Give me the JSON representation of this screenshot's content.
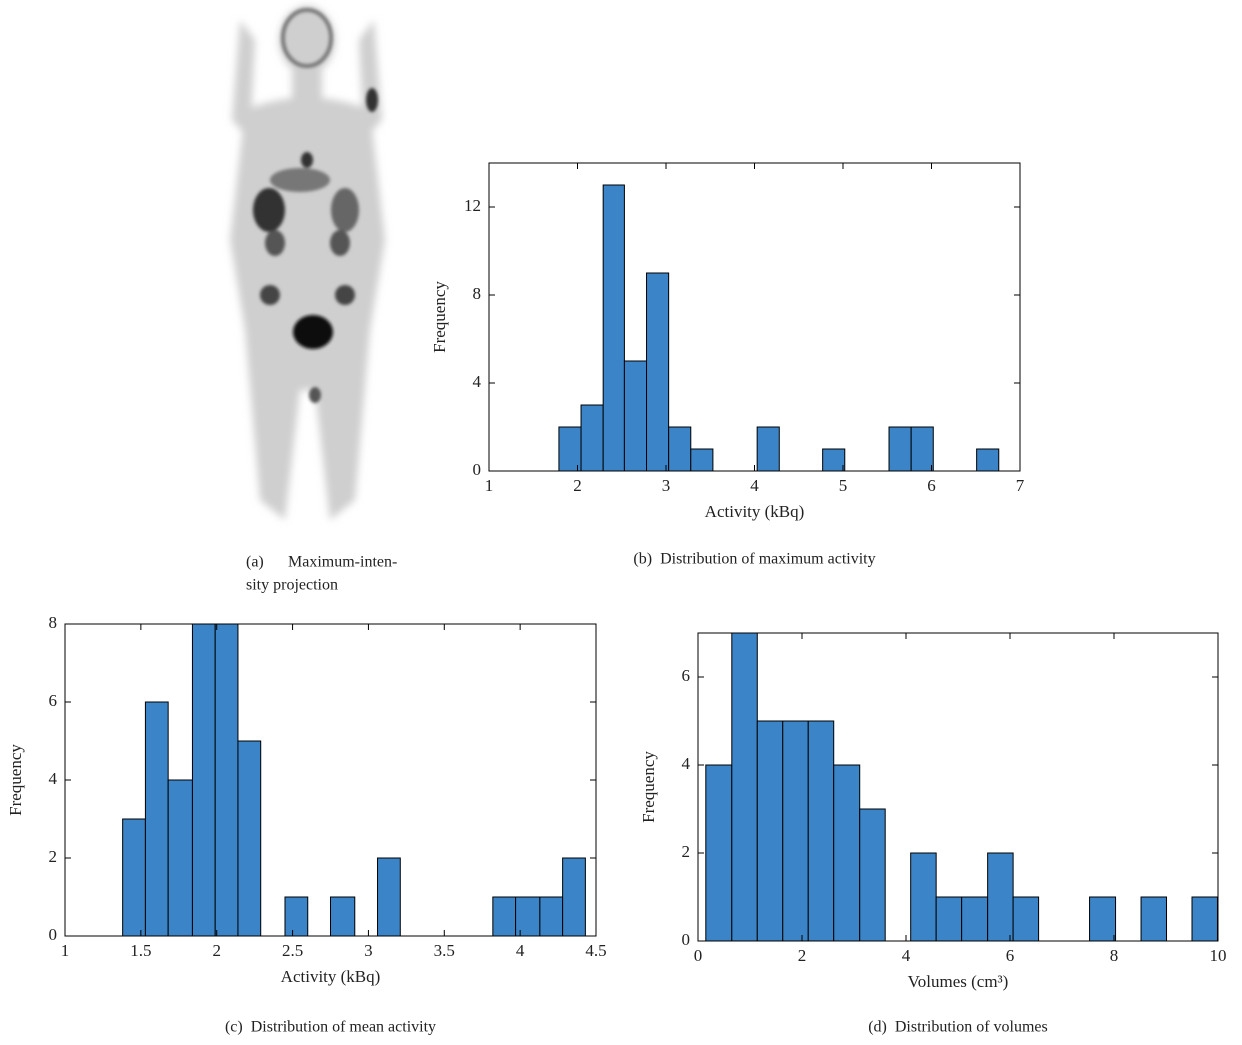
{
  "figure_a": {
    "label": "(a)",
    "caption_lines": [
      "Maximum-inten-",
      "sity projection"
    ]
  },
  "chart_data": [
    {
      "type": "histogram",
      "label": "(b)",
      "caption": "Distribution of maximum activity",
      "x_label": "Activity (kBq)",
      "y_label": "Frequency",
      "color": "#3a84c7",
      "bins": [
        1.79,
        2.04,
        2.29,
        2.53,
        2.78,
        3.03,
        3.28,
        3.53,
        3.78,
        4.03,
        4.28,
        4.52,
        4.77,
        5.02,
        5.27,
        5.52,
        5.77,
        6.02,
        6.26,
        6.51,
        6.76
      ],
      "values": [
        2,
        3,
        13,
        5,
        9,
        2,
        1,
        0,
        0,
        2,
        0,
        0,
        1,
        0,
        0,
        2,
        2,
        0,
        0,
        1
      ],
      "xlim": [
        1,
        7
      ],
      "xticks": [
        1,
        2,
        3,
        4,
        5,
        6,
        7
      ],
      "ylim": [
        0,
        14
      ],
      "yticks": [
        0,
        4,
        8,
        12
      ]
    },
    {
      "type": "histogram",
      "label": "(c)",
      "caption": "Distribution of mean activity",
      "x_label": "Activity (kBq)",
      "y_label": "Frequency",
      "color": "#3a84c7",
      "bins": [
        1.38,
        1.53,
        1.68,
        1.84,
        1.99,
        2.14,
        2.29,
        2.45,
        2.6,
        2.75,
        2.91,
        3.06,
        3.21,
        3.36,
        3.52,
        3.67,
        3.82,
        3.97,
        4.13,
        4.28,
        4.43
      ],
      "values": [
        3,
        6,
        4,
        8,
        8,
        5,
        0,
        1,
        0,
        1,
        0,
        2,
        0,
        0,
        0,
        0,
        1,
        1,
        1,
        2
      ],
      "xlim": [
        1,
        4.5
      ],
      "xticks": [
        1,
        1.5,
        2,
        2.5,
        3,
        3.5,
        4,
        4.5
      ],
      "ylim": [
        0,
        8
      ],
      "yticks": [
        0,
        2,
        4,
        6,
        8
      ]
    },
    {
      "type": "histogram",
      "label": "(d)",
      "caption": "Distribution of volumes",
      "x_label": "Volumes (cm³)",
      "y_label": "Frequency",
      "color": "#3a84c7",
      "bins": [
        0.15,
        0.65,
        1.14,
        1.63,
        2.12,
        2.61,
        3.11,
        3.6,
        4.09,
        4.58,
        5.07,
        5.57,
        6.06,
        6.55,
        7.04,
        7.53,
        8.03,
        8.52,
        9.01,
        9.5,
        9.99
      ],
      "values": [
        4,
        7,
        5,
        5,
        5,
        4,
        3,
        0,
        2,
        1,
        1,
        2,
        1,
        0,
        0,
        1,
        0,
        1,
        0,
        1
      ],
      "xlim": [
        0,
        10
      ],
      "xticks": [
        0,
        2,
        4,
        6,
        8,
        10
      ],
      "ylim": [
        0,
        7
      ],
      "yticks": [
        0,
        2,
        4,
        6
      ]
    }
  ]
}
